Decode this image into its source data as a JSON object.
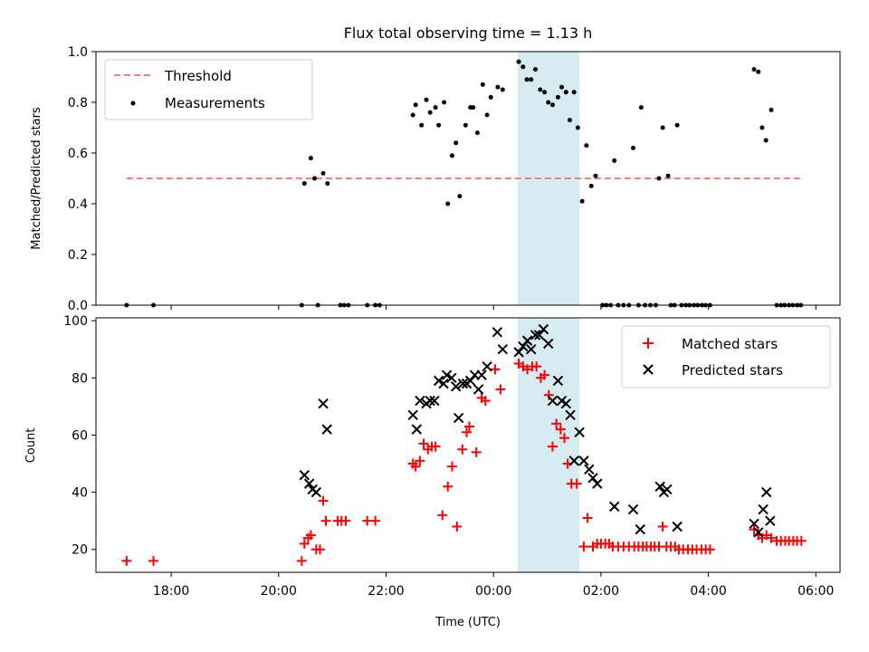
{
  "chart_data": [
    {
      "type": "scatter",
      "title": "Flux total observing time = 1.13 h",
      "xlabel": "",
      "ylabel": "Matched/Predicted stars",
      "ylim": [
        0.0,
        1.0
      ],
      "xlim_hours": [
        16.6,
        30.45
      ],
      "yticks": [
        "0.0",
        "0.2",
        "0.4",
        "0.6",
        "0.8",
        "1.0"
      ],
      "highlight_span": [
        24.45,
        25.6
      ],
      "highlight_color": "#add8e6",
      "legend_position": "upper left",
      "threshold": {
        "name": "Threshold",
        "y": 0.5,
        "x_range": [
          17.17,
          29.75
        ],
        "color": "#f08080",
        "style": "dashed"
      },
      "series": [
        {
          "name": "Measurements",
          "color": "#000000",
          "marker": "dot",
          "points": [
            [
              17.17,
              0.0
            ],
            [
              17.67,
              0.0
            ],
            [
              20.43,
              0.0
            ],
            [
              20.48,
              0.48
            ],
            [
              20.6,
              0.58
            ],
            [
              20.67,
              0.5
            ],
            [
              20.73,
              0.0
            ],
            [
              20.83,
              0.52
            ],
            [
              20.91,
              0.48
            ],
            [
              21.15,
              0.0
            ],
            [
              21.22,
              0.0
            ],
            [
              21.3,
              0.0
            ],
            [
              21.65,
              0.0
            ],
            [
              21.8,
              0.0
            ],
            [
              21.88,
              0.0
            ],
            [
              22.5,
              0.75
            ],
            [
              22.55,
              0.79
            ],
            [
              22.66,
              0.71
            ],
            [
              22.75,
              0.81
            ],
            [
              22.82,
              0.76
            ],
            [
              22.92,
              0.78
            ],
            [
              22.98,
              0.71
            ],
            [
              23.08,
              0.8
            ],
            [
              23.15,
              0.4
            ],
            [
              23.23,
              0.59
            ],
            [
              23.3,
              0.64
            ],
            [
              23.37,
              0.43
            ],
            [
              23.48,
              0.71
            ],
            [
              23.57,
              0.78
            ],
            [
              23.62,
              0.78
            ],
            [
              23.7,
              0.68
            ],
            [
              23.8,
              0.87
            ],
            [
              23.88,
              0.75
            ],
            [
              23.95,
              0.82
            ],
            [
              24.08,
              0.86
            ],
            [
              24.17,
              0.85
            ],
            [
              24.47,
              0.96
            ],
            [
              24.55,
              0.94
            ],
            [
              24.62,
              0.89
            ],
            [
              24.7,
              0.89
            ],
            [
              24.78,
              0.93
            ],
            [
              24.87,
              0.85
            ],
            [
              24.95,
              0.84
            ],
            [
              25.02,
              0.8
            ],
            [
              25.1,
              0.79
            ],
            [
              25.2,
              0.82
            ],
            [
              25.27,
              0.86
            ],
            [
              25.35,
              0.84
            ],
            [
              25.42,
              0.73
            ],
            [
              25.5,
              0.84
            ],
            [
              25.57,
              0.7
            ],
            [
              25.65,
              0.41
            ],
            [
              25.73,
              0.63
            ],
            [
              25.82,
              0.47
            ],
            [
              25.9,
              0.51
            ],
            [
              26.03,
              0.0
            ],
            [
              26.1,
              0.0
            ],
            [
              26.18,
              0.0
            ],
            [
              26.25,
              0.57
            ],
            [
              26.32,
              0.0
            ],
            [
              26.42,
              0.0
            ],
            [
              26.52,
              0.0
            ],
            [
              26.6,
              0.62
            ],
            [
              26.7,
              0.0
            ],
            [
              26.75,
              0.78
            ],
            [
              26.82,
              0.0
            ],
            [
              26.92,
              0.0
            ],
            [
              27.02,
              0.0
            ],
            [
              27.08,
              0.5
            ],
            [
              27.15,
              0.7
            ],
            [
              27.25,
              0.51
            ],
            [
              27.3,
              0.0
            ],
            [
              27.37,
              0.0
            ],
            [
              27.42,
              0.71
            ],
            [
              27.5,
              0.0
            ],
            [
              27.58,
              0.0
            ],
            [
              27.65,
              0.0
            ],
            [
              27.73,
              0.0
            ],
            [
              27.8,
              0.0
            ],
            [
              27.88,
              0.0
            ],
            [
              27.95,
              0.0
            ],
            [
              28.03,
              0.0
            ],
            [
              28.85,
              0.93
            ],
            [
              28.93,
              0.92
            ],
            [
              29.0,
              0.7
            ],
            [
              29.07,
              0.65
            ],
            [
              29.17,
              0.77
            ],
            [
              29.27,
              0.0
            ],
            [
              29.35,
              0.0
            ],
            [
              29.42,
              0.0
            ],
            [
              29.5,
              0.0
            ],
            [
              29.57,
              0.0
            ],
            [
              29.65,
              0.0
            ],
            [
              29.72,
              0.0
            ]
          ]
        }
      ]
    },
    {
      "type": "scatter",
      "xlabel": "Time (UTC)",
      "ylabel": "Count",
      "ylim": [
        12,
        101
      ],
      "xlim_hours": [
        16.6,
        30.45
      ],
      "yticks": [
        "20",
        "40",
        "60",
        "80",
        "100"
      ],
      "xticks": [
        "18:00",
        "20:00",
        "22:00",
        "00:00",
        "02:00",
        "04:00",
        "06:00"
      ],
      "xtick_hours": [
        18,
        20,
        22,
        24,
        26,
        28,
        30
      ],
      "highlight_span": [
        24.45,
        25.6
      ],
      "highlight_color": "#add8e6",
      "legend_position": "upper right",
      "series": [
        {
          "name": "Matched stars",
          "color": "#ff0000",
          "marker": "plus",
          "points": [
            [
              17.17,
              16
            ],
            [
              17.67,
              16
            ],
            [
              20.43,
              16
            ],
            [
              20.48,
              22
            ],
            [
              20.55,
              24
            ],
            [
              20.6,
              25
            ],
            [
              20.7,
              20
            ],
            [
              20.77,
              20
            ],
            [
              20.83,
              37
            ],
            [
              20.88,
              30
            ],
            [
              21.1,
              30
            ],
            [
              21.17,
              30
            ],
            [
              21.25,
              30
            ],
            [
              21.65,
              30
            ],
            [
              21.8,
              30
            ],
            [
              22.5,
              50
            ],
            [
              22.55,
              49
            ],
            [
              22.63,
              51
            ],
            [
              22.7,
              57
            ],
            [
              22.78,
              55
            ],
            [
              22.85,
              56
            ],
            [
              22.92,
              56
            ],
            [
              23.05,
              32
            ],
            [
              23.15,
              42
            ],
            [
              23.23,
              49
            ],
            [
              23.32,
              28
            ],
            [
              23.42,
              55
            ],
            [
              23.5,
              61
            ],
            [
              23.55,
              63
            ],
            [
              23.68,
              54
            ],
            [
              23.78,
              73
            ],
            [
              23.85,
              72
            ],
            [
              24.03,
              83
            ],
            [
              24.13,
              76
            ],
            [
              24.47,
              85
            ],
            [
              24.55,
              84
            ],
            [
              24.63,
              83
            ],
            [
              24.72,
              84
            ],
            [
              24.8,
              84
            ],
            [
              24.88,
              80
            ],
            [
              24.95,
              81
            ],
            [
              25.03,
              74
            ],
            [
              25.1,
              56
            ],
            [
              25.17,
              64
            ],
            [
              25.25,
              62
            ],
            [
              25.32,
              59
            ],
            [
              25.38,
              50
            ],
            [
              25.45,
              43
            ],
            [
              25.55,
              43
            ],
            [
              25.68,
              21
            ],
            [
              25.75,
              31
            ],
            [
              25.85,
              21
            ],
            [
              25.93,
              22
            ],
            [
              26.0,
              22
            ],
            [
              26.08,
              22
            ],
            [
              26.15,
              22
            ],
            [
              26.22,
              21
            ],
            [
              26.32,
              21
            ],
            [
              26.42,
              21
            ],
            [
              26.52,
              21
            ],
            [
              26.62,
              21
            ],
            [
              26.7,
              21
            ],
            [
              26.78,
              21
            ],
            [
              26.85,
              21
            ],
            [
              26.93,
              21
            ],
            [
              27.0,
              21
            ],
            [
              27.08,
              21
            ],
            [
              27.15,
              28
            ],
            [
              27.22,
              21
            ],
            [
              27.3,
              21
            ],
            [
              27.38,
              21
            ],
            [
              27.45,
              20
            ],
            [
              27.53,
              20
            ],
            [
              27.62,
              20
            ],
            [
              27.7,
              20
            ],
            [
              27.78,
              20
            ],
            [
              27.87,
              20
            ],
            [
              27.95,
              20
            ],
            [
              28.03,
              20
            ],
            [
              28.85,
              27
            ],
            [
              28.93,
              25
            ],
            [
              29.0,
              24
            ],
            [
              29.08,
              25
            ],
            [
              29.17,
              24
            ],
            [
              29.27,
              23
            ],
            [
              29.35,
              23
            ],
            [
              29.43,
              23
            ],
            [
              29.5,
              23
            ],
            [
              29.58,
              23
            ],
            [
              29.65,
              23
            ],
            [
              29.73,
              23
            ]
          ]
        },
        {
          "name": "Predicted stars",
          "color": "#000000",
          "marker": "x",
          "points": [
            [
              20.48,
              46
            ],
            [
              20.57,
              43
            ],
            [
              20.63,
              41
            ],
            [
              20.7,
              40
            ],
            [
              20.83,
              71
            ],
            [
              20.9,
              62
            ],
            [
              22.5,
              67
            ],
            [
              22.57,
              62
            ],
            [
              22.63,
              72
            ],
            [
              22.75,
              71
            ],
            [
              22.82,
              72
            ],
            [
              22.9,
              72
            ],
            [
              22.98,
              79
            ],
            [
              23.07,
              78
            ],
            [
              23.13,
              81
            ],
            [
              23.22,
              80
            ],
            [
              23.3,
              77
            ],
            [
              23.35,
              66
            ],
            [
              23.43,
              78
            ],
            [
              23.5,
              78
            ],
            [
              23.57,
              79
            ],
            [
              23.65,
              81
            ],
            [
              23.72,
              76
            ],
            [
              23.78,
              81
            ],
            [
              23.88,
              84
            ],
            [
              24.07,
              96
            ],
            [
              24.17,
              90
            ],
            [
              24.47,
              89
            ],
            [
              24.55,
              91
            ],
            [
              24.63,
              93
            ],
            [
              24.7,
              90
            ],
            [
              24.78,
              95
            ],
            [
              24.85,
              95
            ],
            [
              24.93,
              97
            ],
            [
              25.02,
              92
            ],
            [
              25.1,
              72
            ],
            [
              25.2,
              79
            ],
            [
              25.27,
              72
            ],
            [
              25.35,
              71
            ],
            [
              25.43,
              67
            ],
            [
              25.5,
              51
            ],
            [
              25.6,
              61
            ],
            [
              25.68,
              51
            ],
            [
              25.78,
              48
            ],
            [
              25.85,
              45
            ],
            [
              25.93,
              43
            ],
            [
              26.25,
              35
            ],
            [
              26.6,
              34
            ],
            [
              26.73,
              27
            ],
            [
              27.1,
              42
            ],
            [
              27.17,
              40
            ],
            [
              27.23,
              41
            ],
            [
              27.42,
              28
            ],
            [
              28.85,
              29
            ],
            [
              28.93,
              26
            ],
            [
              29.02,
              34
            ],
            [
              29.08,
              40
            ],
            [
              29.15,
              30
            ]
          ]
        }
      ]
    }
  ]
}
